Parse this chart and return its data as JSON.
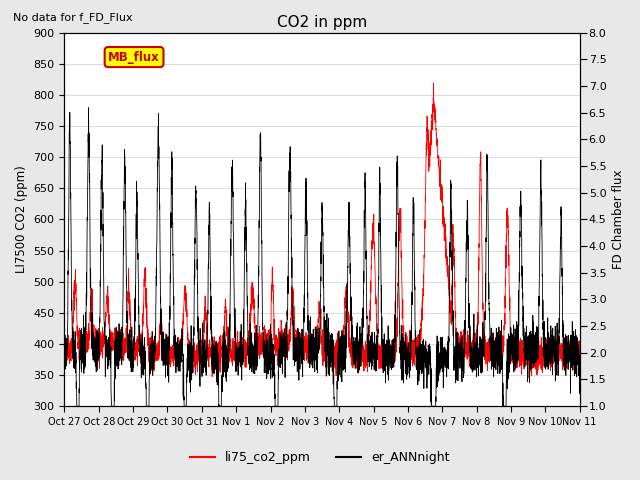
{
  "title": "CO2 in ppm",
  "top_left_text": "No data for f_FD_Flux",
  "ylabel_left": "LI7500 CO2 (ppm)",
  "ylabel_right": "FD Chamber flux",
  "ylim_left": [
    300,
    900
  ],
  "ylim_right": [
    1.0,
    8.0
  ],
  "yticks_left": [
    300,
    350,
    400,
    450,
    500,
    550,
    600,
    650,
    700,
    750,
    800,
    850,
    900
  ],
  "yticks_right": [
    1.0,
    1.5,
    2.0,
    2.5,
    3.0,
    3.5,
    4.0,
    4.5,
    5.0,
    5.5,
    6.0,
    6.5,
    7.0,
    7.5,
    8.0
  ],
  "xlabel_ticks": [
    "Oct 27",
    "Oct 28",
    "Oct 29",
    "Oct 30",
    "Oct 31",
    "Nov 1",
    "Nov 2",
    "Nov 3",
    "Nov 4",
    "Nov 5",
    "Nov 6",
    "Nov 7",
    "Nov 8",
    "Nov 9",
    "Nov 10",
    "Nov 11"
  ],
  "line_red_label": "li75_co2_ppm",
  "line_black_label": "er_ANNnight",
  "mb_flux_box_color": "#ffff00",
  "mb_flux_text_color": "#cc0000",
  "mb_flux_border_color": "#cc0000",
  "background_color": "#e8e8e8",
  "plot_bg_color": "#ffffff",
  "seed": 42,
  "n_points": 3840
}
